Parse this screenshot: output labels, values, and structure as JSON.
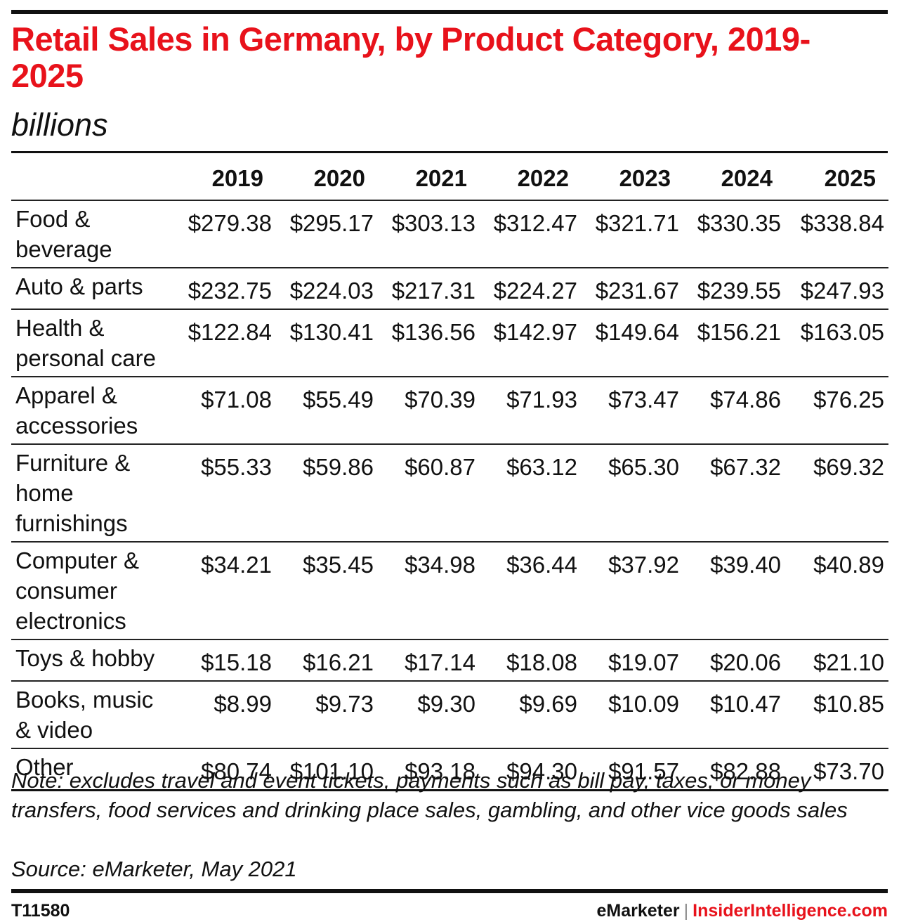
{
  "header": {
    "title": "Retail Sales in Germany, by Product Category, 2019-2025",
    "subtitle": "billions"
  },
  "chart_data": {
    "type": "table",
    "title": "Retail Sales in Germany, by Product Category, 2019-2025",
    "subtitle": "billions",
    "columns": [
      "2019",
      "2020",
      "2021",
      "2022",
      "2023",
      "2024",
      "2025"
    ],
    "rows": [
      {
        "label": "Food & beverage",
        "values": [
          "$279.38",
          "$295.17",
          "$303.13",
          "$312.47",
          "$321.71",
          "$330.35",
          "$338.84"
        ]
      },
      {
        "label": "Auto & parts",
        "values": [
          "$232.75",
          "$224.03",
          "$217.31",
          "$224.27",
          "$231.67",
          "$239.55",
          "$247.93"
        ]
      },
      {
        "label": "Health & personal care",
        "values": [
          "$122.84",
          "$130.41",
          "$136.56",
          "$142.97",
          "$149.64",
          "$156.21",
          "$163.05"
        ]
      },
      {
        "label": "Apparel & accessories",
        "values": [
          "$71.08",
          "$55.49",
          "$70.39",
          "$71.93",
          "$73.47",
          "$74.86",
          "$76.25"
        ]
      },
      {
        "label": "Furniture & home furnishings",
        "values": [
          "$55.33",
          "$59.86",
          "$60.87",
          "$63.12",
          "$65.30",
          "$67.32",
          "$69.32"
        ]
      },
      {
        "label": "Computer & consumer electronics",
        "values": [
          "$34.21",
          "$35.45",
          "$34.98",
          "$36.44",
          "$37.92",
          "$39.40",
          "$40.89"
        ]
      },
      {
        "label": "Toys & hobby",
        "values": [
          "$15.18",
          "$16.21",
          "$17.14",
          "$18.08",
          "$19.07",
          "$20.06",
          "$21.10"
        ]
      },
      {
        "label": "Books, music & video",
        "values": [
          "$8.99",
          "$9.73",
          "$9.30",
          "$9.69",
          "$10.09",
          "$10.47",
          "$10.85"
        ]
      },
      {
        "label": "Other",
        "values": [
          "$80.74",
          "$101.10",
          "$93.18",
          "$94.30",
          "$91.57",
          "$82.88",
          "$73.70"
        ]
      }
    ]
  },
  "footer": {
    "note": "Note: excludes travel and event tickets, payments such as bill pay, taxes, or money transfers, food services and drinking place sales, gambling, and other vice goods sales",
    "source": "Source: eMarketer, May 2021",
    "chart_id": "T11580",
    "brand_left": "eMarketer",
    "brand_separator": "|",
    "brand_right": "InsiderIntelligence.com"
  },
  "colors": {
    "title": "#e8121b",
    "text": "#111111",
    "brand_accent": "#e8121b"
  }
}
